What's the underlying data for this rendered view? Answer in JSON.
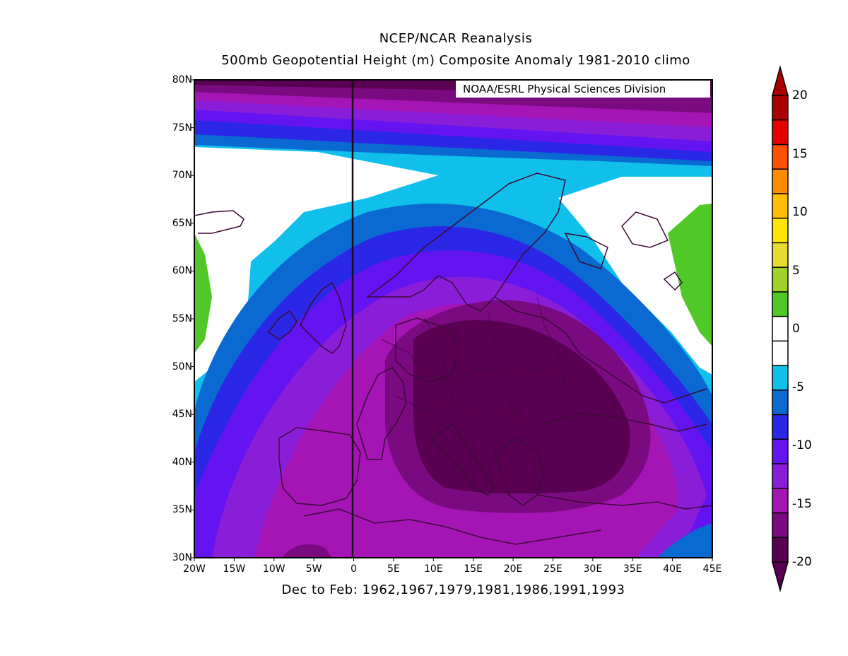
{
  "title": "NCEP/NCAR Reanalysis",
  "subtitle": "500mb Geopotential Height (m) Composite Anomaly 1981-2010 climo",
  "credit": "NOAA/ESRL Physical Sciences Division",
  "xaxis_title": "Dec to Feb: 1962,1967,1979,1981,1986,1991,1993",
  "lat_labels": [
    "80N",
    "75N",
    "70N",
    "65N",
    "60N",
    "55N",
    "50N",
    "45N",
    "40N",
    "35N",
    "30N"
  ],
  "lon_labels": [
    "20W",
    "15W",
    "10W",
    "5W",
    "0",
    "5E",
    "10E",
    "15E",
    "20E",
    "25E",
    "30E",
    "35E",
    "40E",
    "45E"
  ],
  "lat_range": [
    30,
    80
  ],
  "lon_range": [
    -20,
    45
  ],
  "meridian_line_lon": 0,
  "colorbar": {
    "labels": [
      "20",
      "15",
      "10",
      "5",
      "0",
      "-5",
      "-10",
      "-15",
      "-20"
    ],
    "min": -20,
    "max": 20,
    "colors": [
      "#5a0052",
      "#7a0a80",
      "#a514b4",
      "#8a1ed8",
      "#6414f0",
      "#2a28e6",
      "#0a6ad2",
      "#10c0ea",
      "#ffffff",
      "#ffffff",
      "#50c828",
      "#a0d228",
      "#e6dc32",
      "#ffe600",
      "#ffbe00",
      "#ff8c00",
      "#ff5000",
      "#e60000",
      "#aa0000"
    ]
  }
}
